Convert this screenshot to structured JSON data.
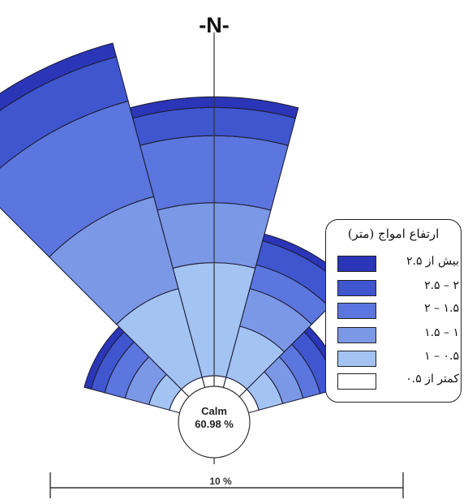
{
  "north_label": "-N-",
  "calm": {
    "label": "Calm",
    "value": "60.98 %"
  },
  "scale_label": "10 %",
  "legend": {
    "title": "ارتفاع امواج (متر)",
    "items": [
      {
        "label": "بیش از ۲.۵",
        "color": "#2a35b8"
      },
      {
        "label": "۲ – ۲.۵",
        "color": "#3f56cf"
      },
      {
        "label": "۱.۵ – ۲",
        "color": "#5b76de"
      },
      {
        "label": "۱ – ۱.۵",
        "color": "#7b98e6"
      },
      {
        "label": "۰.۵ – ۱",
        "color": "#a3c4f2"
      },
      {
        "label": "کمتر از ۰.۵",
        "color": "#ffffff"
      }
    ]
  },
  "chart_data": {
    "type": "wind-rose",
    "calm_percent": 60.98,
    "scale_bar_percent": 10,
    "bins": [
      "کمتر از ۰.۵",
      "۰.۵ – ۱",
      "۱ – ۱.۵",
      "۱.۵ – ۲",
      "۲ – ۲.۵",
      "بیش از ۲.۵"
    ],
    "directions": [
      {
        "center_deg": -60,
        "cumulative_percent": [
          0.3,
          0.9,
          1.6,
          2.2,
          2.6,
          2.8
        ]
      },
      {
        "center_deg": -30,
        "cumulative_percent": [
          0.3,
          2.9,
          5.6,
          8.4,
          9.7,
          10.1
        ]
      },
      {
        "center_deg": 0,
        "cumulative_percent": [
          0.3,
          3.5,
          5.2,
          7.1,
          7.9,
          8.2
        ]
      },
      {
        "center_deg": 30,
        "cumulative_percent": [
          0.3,
          1.8,
          2.9,
          3.6,
          4.3,
          4.5
        ]
      },
      {
        "center_deg": 60,
        "cumulative_percent": [
          0.3,
          1.0,
          1.6,
          2.1,
          2.6,
          2.8
        ]
      }
    ]
  }
}
